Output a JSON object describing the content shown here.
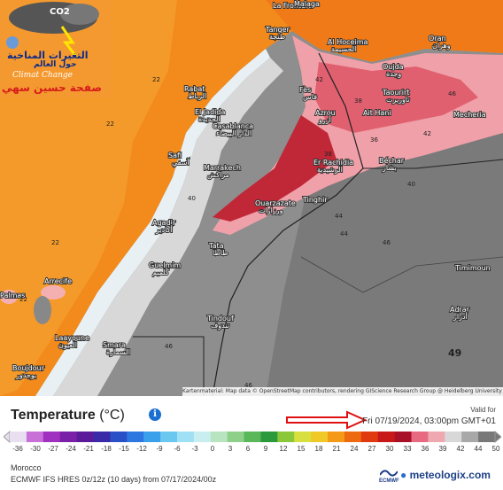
{
  "map": {
    "cities": [
      {
        "name": "La Frontera",
        "tr": ""
      },
      {
        "name": "Malaga",
        "tr": ""
      },
      {
        "name": "Tanger",
        "tr": "طنجة"
      },
      {
        "name": "Al Hoceima",
        "tr": "الحسيمة"
      },
      {
        "name": "Oran",
        "tr": "وهران"
      },
      {
        "name": "Oujda",
        "tr": "وجدة"
      },
      {
        "name": "Rabat",
        "tr": "الرباط"
      },
      {
        "name": "Fès",
        "tr": "فاس"
      },
      {
        "name": "Taourirt",
        "tr": "تاوريرت"
      },
      {
        "name": "El Jadida",
        "tr": "الجديدة"
      },
      {
        "name": "Casablanca",
        "tr": "الدار البيضاء"
      },
      {
        "name": "Azrou",
        "tr": "أزرو"
      },
      {
        "name": "Ait Hani",
        "tr": ""
      },
      {
        "name": "Mecheria",
        "tr": ""
      },
      {
        "name": "Safi",
        "tr": "آسفي"
      },
      {
        "name": "Marrakech",
        "tr": "مراكش"
      },
      {
        "name": "Er Rachidia",
        "tr": "الرشيدية"
      },
      {
        "name": "Béchar",
        "tr": "بشار"
      },
      {
        "name": "Ouarzazate",
        "tr": "ورزازات"
      },
      {
        "name": "Tinghir",
        "tr": ""
      },
      {
        "name": "Agadir",
        "tr": "أكادير"
      },
      {
        "name": "Tata",
        "tr": "طاطا"
      },
      {
        "name": "Guelmim",
        "tr": "كلميم"
      },
      {
        "name": "Timimoun",
        "tr": ""
      },
      {
        "name": "Arrecife",
        "tr": ""
      },
      {
        "name": "Adrar",
        "tr": "أدرار"
      },
      {
        "name": "Palmas",
        "tr": ""
      },
      {
        "name": "Tindouf",
        "tr": "تندوف"
      },
      {
        "name": "Laayoune",
        "tr": "العيون"
      },
      {
        "name": "Smara",
        "tr": "السمارة"
      },
      {
        "name": "Boujdour",
        "tr": "بوجدور"
      }
    ],
    "temperatures": [
      "22",
      "22",
      "22",
      "22",
      "42",
      "38",
      "46",
      "36",
      "42",
      "38",
      "40",
      "44",
      "40",
      "44",
      "46",
      "46",
      "46",
      "49"
    ],
    "highlight_value": "49",
    "attribution": "Kartenmaterial: Map data © OpenStreetMap contributors, rendering GIScience Research Group @ Heidelberg University"
  },
  "watermark": {
    "arabic_title": "التغيرات المناخية",
    "arabic_sub": "حول العالم",
    "english": "Climat Change",
    "author": "صفحة حسين سهي",
    "cloud_text": "CO2"
  },
  "legend": {
    "title": "Temperature",
    "unit": "(°C)",
    "valid_label": "Valid for",
    "valid_value": "Fri 07/19/2024, 03:00pm GMT+01",
    "ticks": [
      "-36",
      "-30",
      "-27",
      "-24",
      "-21",
      "-18",
      "-15",
      "-12",
      "-9",
      "-6",
      "-3",
      "0",
      "3",
      "6",
      "9",
      "12",
      "15",
      "18",
      "21",
      "24",
      "27",
      "30",
      "33",
      "36",
      "39",
      "42",
      "44",
      "50"
    ],
    "colors": [
      "#e8e0f0",
      "#c870d8",
      "#a030c0",
      "#7a1fa8",
      "#5a1a9a",
      "#3a2aa8",
      "#2a50c8",
      "#2c78e0",
      "#3aa0ec",
      "#6ac8f0",
      "#a0e0f4",
      "#c8eef0",
      "#b8e4c0",
      "#8ed08a",
      "#5ab85a",
      "#2c9a3c",
      "#8ac83a",
      "#d8e040",
      "#f0c828",
      "#f49a18",
      "#ee6a10",
      "#e03a10",
      "#c81818",
      "#a81028",
      "#e86a80",
      "#f0a8b0",
      "#d8d8d8",
      "#a8a8a8",
      "#787878"
    ]
  },
  "footer": {
    "region": "Morocco",
    "model": "ECMWF IFS HRES 0z/12z (10 days) from 07/17/2024/00z",
    "ecmwf": "ECMWF",
    "brand": "meteologix.com"
  }
}
